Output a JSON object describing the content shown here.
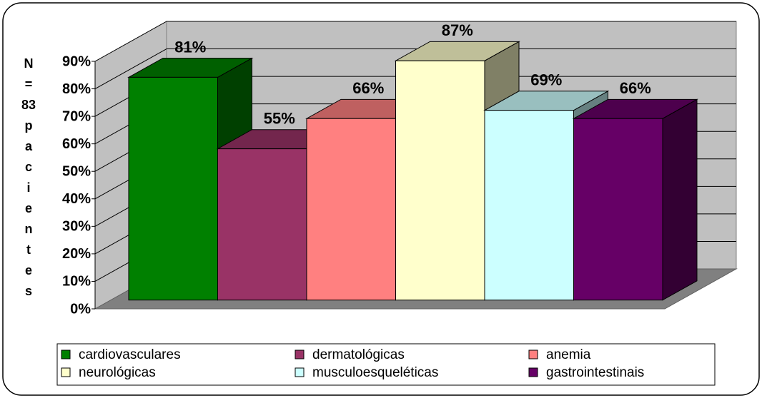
{
  "chart_data": {
    "type": "bar3d",
    "y_label": "N = 83 pacientes",
    "categories": [
      null
    ],
    "series": [
      {
        "name": "cardiovasculares",
        "color": "#008000",
        "values": [
          81
        ],
        "value_labels": [
          "81%"
        ]
      },
      {
        "name": "dermatológicas",
        "color": "#993366",
        "values": [
          55
        ],
        "value_labels": [
          "55%"
        ]
      },
      {
        "name": "anemia",
        "color": "#ff8080",
        "values": [
          66
        ],
        "value_labels": [
          "66%"
        ]
      },
      {
        "name": "neurológicas",
        "color": "#ffffcc",
        "values": [
          87
        ],
        "value_labels": [
          "87%"
        ]
      },
      {
        "name": "musculoesqueléticas",
        "color": "#ccffff",
        "values": [
          69
        ],
        "value_labels": [
          "69%"
        ]
      },
      {
        "name": "gastrointestinais",
        "color": "#660066",
        "values": [
          66
        ],
        "value_labels": [
          "66%"
        ]
      }
    ],
    "ylim": [
      0,
      90
    ],
    "yticks": [
      {
        "value": 0,
        "label": "0%"
      },
      {
        "value": 10,
        "label": "10%"
      },
      {
        "value": 20,
        "label": "20%"
      },
      {
        "value": 30,
        "label": "30%"
      },
      {
        "value": 40,
        "label": "40%"
      },
      {
        "value": 50,
        "label": "50%"
      },
      {
        "value": 60,
        "label": "60%"
      },
      {
        "value": 70,
        "label": "70%"
      },
      {
        "value": 80,
        "label": "80%"
      },
      {
        "value": 90,
        "label": "90%"
      }
    ],
    "grid": true,
    "legend": "bottom"
  }
}
